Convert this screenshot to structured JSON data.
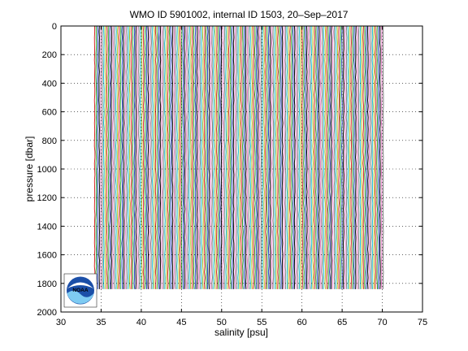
{
  "chart_data": {
    "type": "line",
    "title": "WMO ID 5901002, internal ID 1503, 20–Sep–2017",
    "xlabel": "salinity [psu]",
    "ylabel": "pressure [dbar]",
    "xlim": [
      30,
      75
    ],
    "ylim": [
      0,
      2000
    ],
    "y_reversed": true,
    "grid": true,
    "x_ticks": [
      "30",
      "35",
      "40",
      "45",
      "50",
      "55",
      "60",
      "65",
      "70",
      "75"
    ],
    "y_ticks": [
      "0",
      "200",
      "400",
      "600",
      "800",
      "1000",
      "1200",
      "1400",
      "1600",
      "1800",
      "2000"
    ],
    "profile_depth_range": [
      0,
      1840
    ],
    "salinity_range": [
      34.2,
      70.2
    ],
    "series_colors": [
      "#d62728",
      "#2ca02c",
      "#1f3fbf",
      "#000000",
      "#e377c2",
      "#7f7f7f",
      "#17becf",
      "#bcbd22"
    ],
    "logo": "noaa-logo"
  }
}
